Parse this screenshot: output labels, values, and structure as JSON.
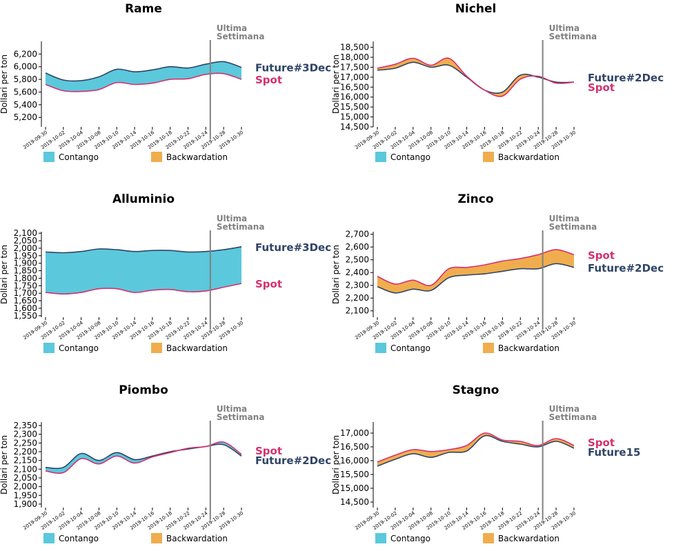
{
  "palette": {
    "contango": "#5bc8dc",
    "backwardation": "#f0ad4e",
    "spot": "#d6306e",
    "future": "#2f4468",
    "vline": "#808080",
    "axis": "#000000"
  },
  "legend": {
    "contango": "Contango",
    "backwardation": "Backwardation"
  },
  "vline_label": [
    "Ultima",
    "Settimana"
  ],
  "ylabel": "Dollari per ton",
  "x_ticks": [
    "2019-09-30",
    "2019-10-02",
    "2019-10-04",
    "2019-10-08",
    "2019-10-10",
    "2019-10-14",
    "2019-10-16",
    "2019-10-18",
    "2019-10-22",
    "2019-10-24",
    "2019-10-28",
    "2019-10-30"
  ],
  "chart_data": [
    {
      "type": "area",
      "title": "Rame",
      "ylabel": "Dollari per ton",
      "ylim": [
        5050,
        6400
      ],
      "y_ticks": [
        5200,
        5400,
        5600,
        5800,
        6000,
        6200
      ],
      "x": [
        "2019-09-30",
        "2019-10-02",
        "2019-10-04",
        "2019-10-08",
        "2019-10-10",
        "2019-10-14",
        "2019-10-16",
        "2019-10-18",
        "2019-10-22",
        "2019-10-24",
        "2019-10-28",
        "2019-10-30"
      ],
      "vline_at": "2019-10-25",
      "series": [
        {
          "name": "Future#3Dec",
          "values": [
            5900,
            5790,
            5780,
            5840,
            5960,
            5920,
            5950,
            6000,
            5980,
            6040,
            6080,
            5990
          ]
        },
        {
          "name": "Spot",
          "values": [
            5720,
            5620,
            5610,
            5640,
            5750,
            5720,
            5740,
            5800,
            5810,
            5880,
            5890,
            5800
          ]
        }
      ]
    },
    {
      "type": "area",
      "title": "Nichel",
      "ylabel": "Dollari per ton",
      "ylim": [
        14500,
        18800
      ],
      "y_ticks": [
        14500,
        15000,
        15500,
        16000,
        16500,
        17000,
        17500,
        18000,
        18500
      ],
      "x": [
        "2019-09-30",
        "2019-10-02",
        "2019-10-04",
        "2019-10-08",
        "2019-10-10",
        "2019-10-14",
        "2019-10-16",
        "2019-10-18",
        "2019-10-22",
        "2019-10-24",
        "2019-10-28",
        "2019-10-30"
      ],
      "vline_at": "2019-10-25",
      "series": [
        {
          "name": "Spot",
          "values": [
            17450,
            17650,
            17950,
            17600,
            17950,
            17050,
            16350,
            16050,
            16900,
            17050,
            16700,
            16750
          ]
        },
        {
          "name": "Future#2Dec",
          "values": [
            17350,
            17450,
            17750,
            17500,
            17600,
            17000,
            16350,
            16250,
            17100,
            17000,
            16750,
            16750
          ]
        }
      ]
    },
    {
      "type": "area",
      "title": "Alluminio",
      "ylabel": "Dollari per ton",
      "ylim": [
        1540,
        2110
      ],
      "y_ticks": [
        1550,
        1600,
        1650,
        1700,
        1750,
        1800,
        1850,
        1900,
        1950,
        2000,
        2050,
        2100
      ],
      "x": [
        "2019-09-30",
        "2019-10-02",
        "2019-10-04",
        "2019-10-08",
        "2019-10-10",
        "2019-10-14",
        "2019-10-16",
        "2019-10-18",
        "2019-10-22",
        "2019-10-24",
        "2019-10-28",
        "2019-10-30"
      ],
      "vline_at": "2019-10-25",
      "series": [
        {
          "name": "Future#3Dec",
          "values": [
            1975,
            1970,
            1978,
            1995,
            1990,
            1978,
            1985,
            1985,
            1975,
            1978,
            1990,
            2010
          ]
        },
        {
          "name": "Spot",
          "values": [
            1705,
            1695,
            1705,
            1730,
            1730,
            1705,
            1720,
            1725,
            1710,
            1715,
            1740,
            1765
          ]
        }
      ]
    },
    {
      "type": "area",
      "title": "Zinco",
      "ylabel": "Dollari per ton",
      "ylim": [
        2050,
        2720
      ],
      "y_ticks": [
        2100,
        2200,
        2300,
        2400,
        2500,
        2600,
        2700
      ],
      "x": [
        "2019-09-30",
        "2019-10-02",
        "2019-10-04",
        "2019-10-08",
        "2019-10-10",
        "2019-10-14",
        "2019-10-16",
        "2019-10-18",
        "2019-10-22",
        "2019-10-24",
        "2019-10-28",
        "2019-10-30"
      ],
      "vline_at": "2019-10-25",
      "series": [
        {
          "name": "Spot",
          "values": [
            2370,
            2310,
            2340,
            2300,
            2430,
            2440,
            2460,
            2490,
            2510,
            2540,
            2580,
            2540
          ]
        },
        {
          "name": "Future#2Dec",
          "values": [
            2290,
            2240,
            2270,
            2260,
            2360,
            2380,
            2390,
            2410,
            2430,
            2430,
            2470,
            2440
          ]
        }
      ]
    },
    {
      "type": "area",
      "title": "Piombo",
      "ylabel": "Dollari per ton",
      "ylim": [
        1880,
        2370
      ],
      "y_ticks": [
        1900,
        1950,
        2000,
        2050,
        2100,
        2150,
        2200,
        2250,
        2300,
        2350
      ],
      "x": [
        "2019-09-30",
        "2019-10-02",
        "2019-10-04",
        "2019-10-08",
        "2019-10-10",
        "2019-10-14",
        "2019-10-16",
        "2019-10-18",
        "2019-10-22",
        "2019-10-24",
        "2019-10-28",
        "2019-10-30"
      ],
      "vline_at": "2019-10-25",
      "series": [
        {
          "name": "Spot",
          "values": [
            2090,
            2080,
            2160,
            2130,
            2175,
            2135,
            2170,
            2195,
            2220,
            2230,
            2255,
            2185
          ]
        },
        {
          "name": "Future#2Dec",
          "values": [
            2110,
            2110,
            2190,
            2150,
            2195,
            2155,
            2175,
            2200,
            2215,
            2230,
            2240,
            2175
          ]
        }
      ]
    },
    {
      "type": "area",
      "title": "Stagno",
      "ylabel": "Dollari per ton",
      "ylim": [
        14300,
        17400
      ],
      "y_ticks": [
        14500,
        15000,
        15500,
        16000,
        16500,
        17000
      ],
      "x": [
        "2019-09-30",
        "2019-10-02",
        "2019-10-04",
        "2019-10-08",
        "2019-10-10",
        "2019-10-14",
        "2019-10-16",
        "2019-10-18",
        "2019-10-22",
        "2019-10-24",
        "2019-10-28",
        "2019-10-30"
      ],
      "vline_at": "2019-10-25",
      "series": [
        {
          "name": "Spot",
          "values": [
            15950,
            16200,
            16400,
            16330,
            16400,
            16550,
            17000,
            16750,
            16700,
            16550,
            16800,
            16550
          ]
        },
        {
          "name": "Future15",
          "values": [
            15800,
            16050,
            16250,
            16120,
            16300,
            16350,
            16900,
            16700,
            16600,
            16500,
            16700,
            16450
          ]
        }
      ]
    }
  ]
}
